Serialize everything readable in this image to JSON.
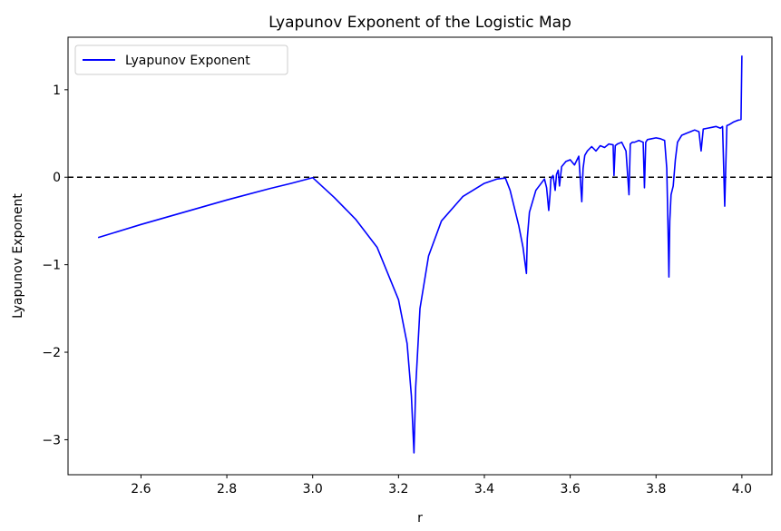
{
  "chart_data": {
    "type": "line",
    "title": "Lyapunov Exponent of the Logistic Map",
    "xlabel": "r",
    "ylabel": "Lyapunov Exponent",
    "xlim": [
      2.43,
      4.07
    ],
    "ylim": [
      -3.4,
      1.6
    ],
    "xticks": [
      2.6,
      2.8,
      3.0,
      3.2,
      3.4,
      3.6,
      3.8,
      4.0
    ],
    "xtick_labels": [
      "2.6",
      "2.8",
      "3.0",
      "3.2",
      "3.4",
      "3.6",
      "3.8",
      "4.0"
    ],
    "yticks": [
      1,
      0,
      -1,
      -2,
      -3
    ],
    "ytick_labels": [
      "1",
      "0",
      "−1",
      "−2",
      "−3"
    ],
    "grid": false,
    "legend": {
      "position": "top-left",
      "entries": [
        "Lyapunov Exponent"
      ]
    },
    "reference_line": {
      "y": 0,
      "style": "dashed",
      "color": "#000000"
    },
    "series": [
      {
        "name": "Lyapunov Exponent",
        "color": "#0000ff",
        "x": [
          2.5,
          2.6,
          2.7,
          2.8,
          2.9,
          2.95,
          3.0,
          3.05,
          3.1,
          3.15,
          3.2,
          3.22,
          3.23,
          3.236,
          3.24,
          3.25,
          3.27,
          3.3,
          3.35,
          3.4,
          3.43,
          3.449,
          3.46,
          3.48,
          3.49,
          3.498,
          3.5,
          3.505,
          3.52,
          3.54,
          3.545,
          3.55,
          3.553,
          3.555,
          3.56,
          3.565,
          3.568,
          3.572,
          3.575,
          3.58,
          3.59,
          3.6,
          3.61,
          3.62,
          3.627,
          3.63,
          3.634,
          3.64,
          3.65,
          3.66,
          3.67,
          3.68,
          3.69,
          3.7,
          3.702,
          3.705,
          3.71,
          3.72,
          3.73,
          3.737,
          3.74,
          3.745,
          3.75,
          3.76,
          3.77,
          3.773,
          3.776,
          3.78,
          3.79,
          3.8,
          3.81,
          3.82,
          3.825,
          3.828,
          3.83,
          3.832,
          3.835,
          3.84,
          3.845,
          3.85,
          3.86,
          3.87,
          3.88,
          3.89,
          3.9,
          3.905,
          3.91,
          3.92,
          3.93,
          3.94,
          3.95,
          3.955,
          3.96,
          3.965,
          3.97,
          3.98,
          3.99,
          3.998,
          4.0
        ],
        "y": [
          -0.69,
          -0.54,
          -0.4,
          -0.26,
          -0.13,
          -0.07,
          -0.005,
          -0.23,
          -0.48,
          -0.8,
          -1.4,
          -1.9,
          -2.5,
          -3.15,
          -2.4,
          -1.5,
          -0.9,
          -0.5,
          -0.22,
          -0.07,
          -0.02,
          -0.01,
          -0.15,
          -0.55,
          -0.8,
          -1.1,
          -0.7,
          -0.4,
          -0.15,
          -0.02,
          -0.12,
          -0.38,
          -0.2,
          -0.02,
          0.02,
          -0.15,
          0.03,
          0.08,
          -0.1,
          0.12,
          0.18,
          0.2,
          0.14,
          0.24,
          -0.28,
          0.1,
          0.25,
          0.3,
          0.35,
          0.3,
          0.36,
          0.34,
          0.38,
          0.37,
          0.02,
          0.36,
          0.38,
          0.4,
          0.3,
          -0.2,
          0.38,
          0.4,
          0.4,
          0.42,
          0.4,
          -0.12,
          0.4,
          0.43,
          0.44,
          0.45,
          0.44,
          0.42,
          0.1,
          -0.6,
          -1.14,
          -0.5,
          -0.2,
          -0.1,
          0.2,
          0.4,
          0.48,
          0.5,
          0.52,
          0.54,
          0.52,
          0.3,
          0.55,
          0.56,
          0.57,
          0.58,
          0.56,
          0.58,
          -0.33,
          0.59,
          0.6,
          0.63,
          0.65,
          0.66,
          1.39
        ]
      }
    ]
  }
}
